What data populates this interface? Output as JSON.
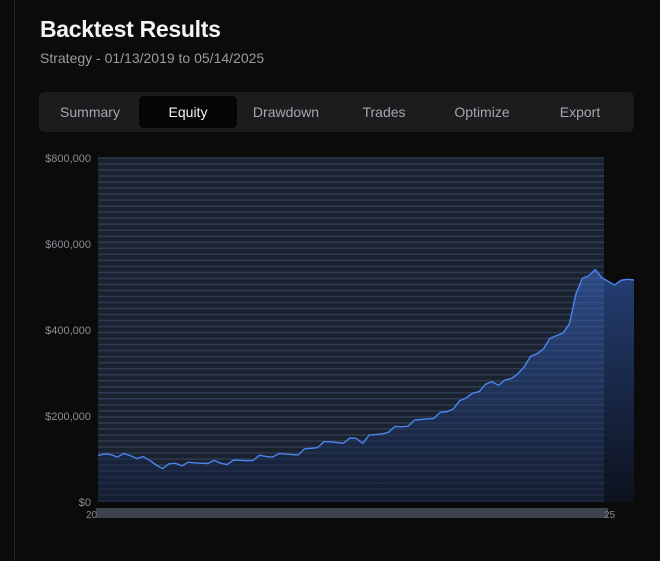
{
  "header": {
    "title": "Backtest Results",
    "subtitle": "Strategy - 01/13/2019 to 05/14/2025"
  },
  "tabs": [
    {
      "label": "Summary",
      "active": false
    },
    {
      "label": "Equity",
      "active": true
    },
    {
      "label": "Drawdown",
      "active": false
    },
    {
      "label": "Trades",
      "active": false
    },
    {
      "label": "Optimize",
      "active": false
    },
    {
      "label": "Export",
      "active": false
    }
  ],
  "colors": {
    "accent": "#3b6fd6",
    "line": "#4a85ee",
    "grid": "#2e3a4f"
  },
  "chart_data": {
    "type": "area",
    "x_start": "01/13/2019",
    "x_end": "05/14/2025",
    "ylim": [
      0,
      800000
    ],
    "yticks": [
      "$800,000",
      "$600,000",
      "$400,000",
      "$200,000",
      "$0"
    ],
    "ytick_values": [
      800000,
      600000,
      400000,
      200000,
      0
    ],
    "x_tick_labels": [
      "20",
      "25"
    ],
    "grid": true,
    "series": [
      {
        "values": [
          108000,
          110000,
          112000,
          110000,
          109000,
          108000,
          105000,
          100000,
          95000,
          88000,
          83000,
          85000,
          90000,
          88000,
          87000,
          89000,
          92000,
          95000,
          93000,
          90000,
          91000,
          92000,
          95000,
          98000,
          102000,
          105000,
          106000,
          108000,
          107000,
          110000,
          112000,
          115000,
          120000,
          125000,
          130000,
          135000,
          138000,
          140000,
          142000,
          145000,
          148000,
          140000,
          150000,
          155000,
          160000,
          168000,
          172000,
          175000,
          180000,
          185000,
          190000,
          195000,
          200000,
          205000,
          210000,
          220000,
          230000,
          240000,
          255000,
          262000,
          270000,
          280000,
          275000,
          278000,
          285000,
          300000,
          320000,
          335000,
          345000,
          360000,
          375000,
          385000,
          395000,
          420000,
          480000,
          520000,
          530000,
          535000,
          520000,
          515000,
          510000,
          512000,
          518000,
          520000
        ]
      }
    ]
  }
}
